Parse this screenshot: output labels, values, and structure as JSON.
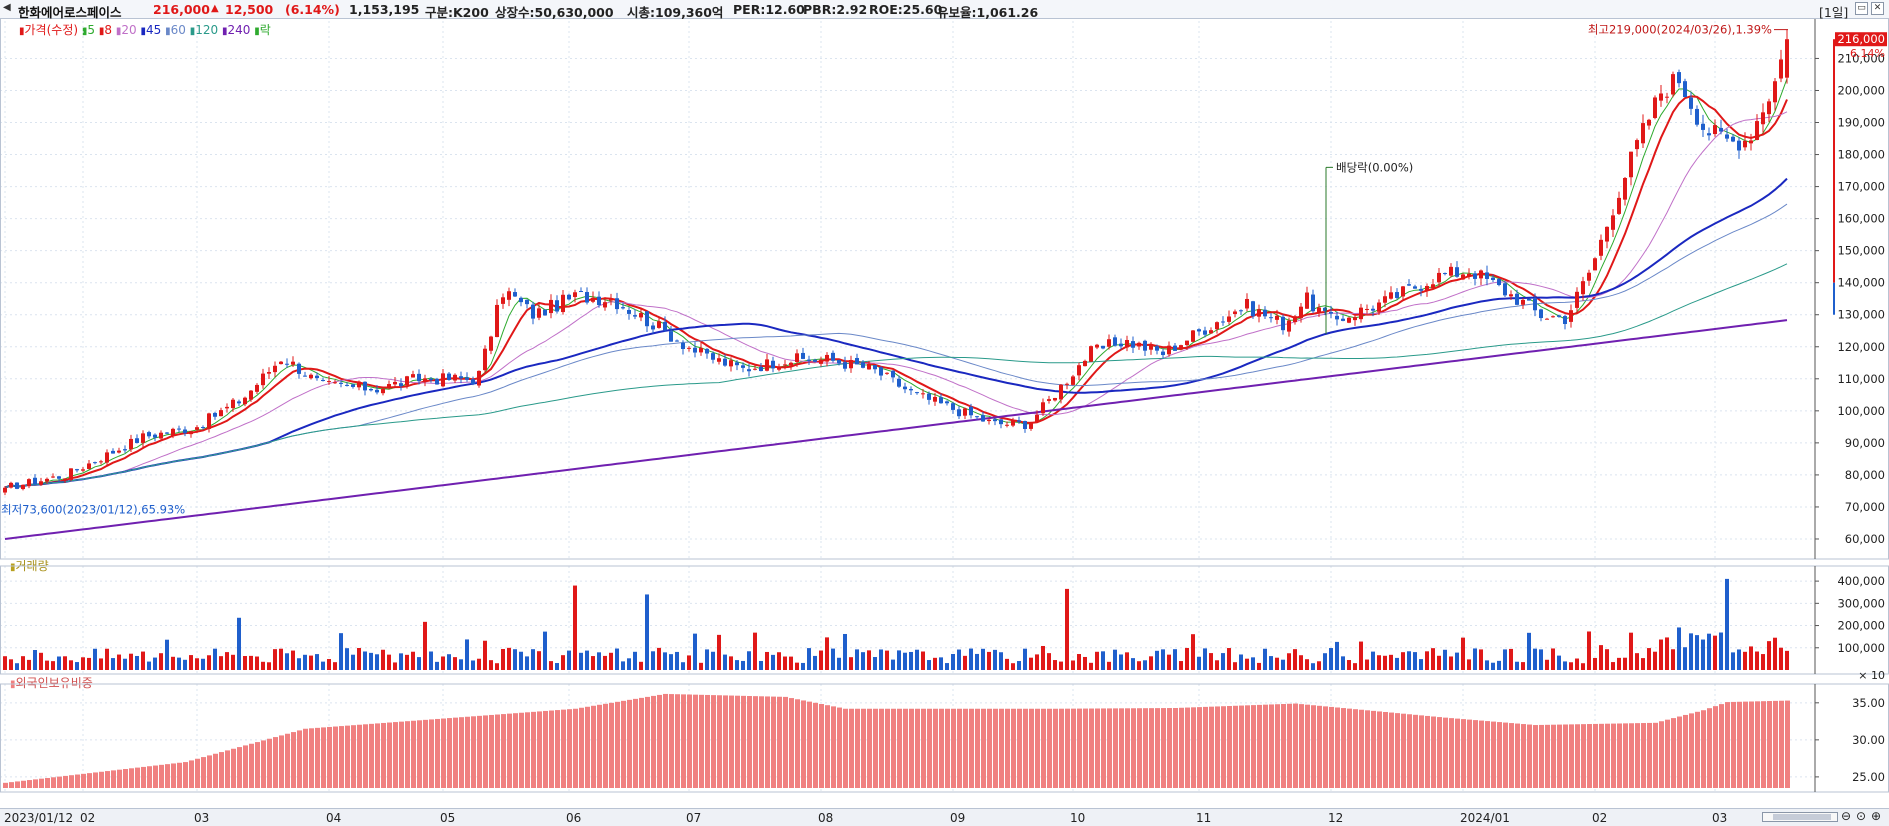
{
  "header": {
    "menu_icon": "triangle-left-icon",
    "stock_name": "한화에어로스페이스",
    "price": "216,000",
    "change_arrow": "▲",
    "change": "12,500",
    "change_pct": "(6.14%)",
    "volume": "1,153,195",
    "market": "구분:K200",
    "listed_shares": "상장수:50,630,000",
    "market_cap": "시총:109,360억",
    "per": "PER:12.60",
    "pbr": "PBR:2.92",
    "roe": "ROE:25.60",
    "float_ratio": "유보율:1,061.26",
    "period": "[1일]",
    "window_buttons": [
      "▭",
      "✕"
    ]
  },
  "legend": {
    "price_label": "가격(수정)",
    "ma": [
      {
        "label": "5",
        "color": "#2eaa2e"
      },
      {
        "label": "8",
        "color": "#e01818"
      },
      {
        "label": "20",
        "color": "#c070c8"
      },
      {
        "label": "45",
        "color": "#1a28c0"
      },
      {
        "label": "60",
        "color": "#6a88c8"
      },
      {
        "label": "120",
        "color": "#2a9a8a"
      },
      {
        "label": "240",
        "color": "#7020b0"
      }
    ],
    "ex_label": "락",
    "volume_label": "거래량",
    "foreign_label": "외국인보유비중"
  },
  "colors": {
    "up": "#e01818",
    "down": "#1f5fcc",
    "foreign": "#f08080",
    "grid": "#dbe4ef"
  },
  "annotations": {
    "high": "최고219,000(2024/03/26),1.39%",
    "low": "최저73,600(2023/01/12),65.93%",
    "dividend": "배당락(0.00%)",
    "last_price": "216,000",
    "last_pct": "6.14%"
  },
  "x_labels": [
    "2023/01/12",
    "02",
    "03",
    "04",
    "05",
    "06",
    "07",
    "08",
    "09",
    "10",
    "11",
    "12",
    "2024/01",
    "02",
    "03"
  ],
  "chart_data": [
    {
      "type": "candlestick",
      "title": "가격(수정)",
      "yticks": [
        60000,
        70000,
        80000,
        90000,
        100000,
        110000,
        120000,
        130000,
        140000,
        150000,
        160000,
        170000,
        180000,
        190000,
        200000,
        210000
      ],
      "ylim": [
        55000,
        222000
      ],
      "key_points": [
        {
          "date": "2023/01/12",
          "close": 76000
        },
        {
          "date": "2023/04 mid",
          "close": 117000
        },
        {
          "date": "2023/06 late",
          "close": 145000
        },
        {
          "date": "2023/07 end",
          "close": 125000
        },
        {
          "date": "2023/10 late",
          "close": 95000
        },
        {
          "date": "2023/12 early",
          "close": 138000
        },
        {
          "date": "2024/01 late",
          "close": 145000
        },
        {
          "date": "2024/02 mid",
          "close": 130000
        },
        {
          "date": "2024/03 early",
          "close": 205000
        },
        {
          "date": "2024/03/22",
          "close": 203500
        },
        {
          "date": "2024/03/26",
          "close": 216000
        }
      ],
      "high": 219000,
      "low": 73600,
      "last_close": 216000,
      "ma_end": {
        "5": 201000,
        "8": 194000,
        "20": 190000,
        "45": 164000,
        "60": 156000,
        "120": 137000,
        "240": 126000
      }
    },
    {
      "type": "bar",
      "title": "거래량",
      "yticks": [
        100000,
        200000,
        300000,
        400000
      ],
      "tick_labels": [
        "100,000",
        "200,000",
        "300,000",
        "400,000"
      ],
      "unit_label": "× 10",
      "ylim": [
        0,
        450000
      ],
      "peaks": [
        {
          "date": "2023/06 early",
          "value": 380000
        },
        {
          "date": "2023/07 end",
          "value": 365000
        },
        {
          "date": "2024/03 early",
          "value": 410000
        }
      ]
    },
    {
      "type": "bar",
      "title": "외국인보유비중",
      "yticks": [
        25,
        30,
        35
      ],
      "tick_labels": [
        "25.00",
        "30.00",
        "35.00"
      ],
      "ylim": [
        23.5,
        37
      ],
      "key_points": [
        {
          "date": "2023/01/12",
          "value": 24.2
        },
        {
          "date": "2023/04 end",
          "value": 32.5
        },
        {
          "date": "2023/06 end",
          "value": 36.2
        },
        {
          "date": "2023/08",
          "value": 34.2
        },
        {
          "date": "2023/10",
          "value": 34.3
        },
        {
          "date": "2023/11",
          "value": 34.9
        },
        {
          "date": "2024/01",
          "value": 32.0
        },
        {
          "date": "2024/02",
          "value": 32.0
        },
        {
          "date": "2024/03",
          "value": 35.1
        }
      ]
    }
  ]
}
